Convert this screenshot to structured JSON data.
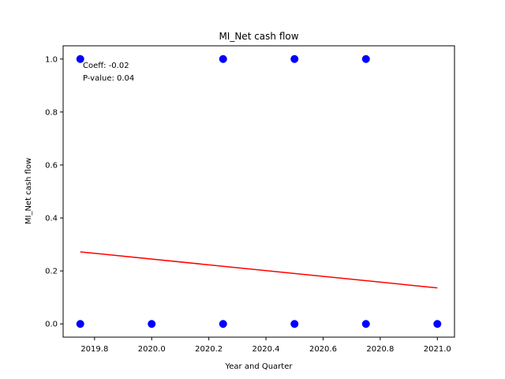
{
  "chart_data": {
    "type": "scatter",
    "title": "MI_Net cash flow",
    "xlabel": "Year and Quarter",
    "ylabel": "MI_Net cash flow",
    "xlim": [
      2019.69,
      2021.06
    ],
    "ylim": [
      -0.05,
      1.05
    ],
    "xticks": [
      2019.8,
      2020.0,
      2020.2,
      2020.4,
      2020.6,
      2020.8,
      2021.0
    ],
    "xtick_labels": [
      "2019.8",
      "2020.0",
      "2020.2",
      "2020.4",
      "2020.6",
      "2020.8",
      "2021.0"
    ],
    "yticks": [
      0.0,
      0.2,
      0.4,
      0.6,
      0.8,
      1.0
    ],
    "ytick_labels": [
      "0.0",
      "0.2",
      "0.4",
      "0.6",
      "0.8",
      "1.0"
    ],
    "grid": false,
    "series": [
      {
        "kind": "scatter",
        "color": "#0000ff",
        "points": [
          {
            "x": 2019.75,
            "y": 1
          },
          {
            "x": 2019.75,
            "y": 0
          },
          {
            "x": 2020.0,
            "y": 0
          },
          {
            "x": 2020.25,
            "y": 1
          },
          {
            "x": 2020.25,
            "y": 0
          },
          {
            "x": 2020.5,
            "y": 1
          },
          {
            "x": 2020.5,
            "y": 0
          },
          {
            "x": 2020.75,
            "y": 1
          },
          {
            "x": 2020.75,
            "y": 0
          },
          {
            "x": 2021.0,
            "y": 0
          }
        ]
      },
      {
        "kind": "line",
        "color": "#ff0000",
        "points": [
          {
            "x": 2019.75,
            "y": 0.272
          },
          {
            "x": 2021.0,
            "y": 0.136
          }
        ]
      }
    ],
    "annotations": [
      "Coeff: -0.02",
      "P-value: 0.04"
    ]
  }
}
